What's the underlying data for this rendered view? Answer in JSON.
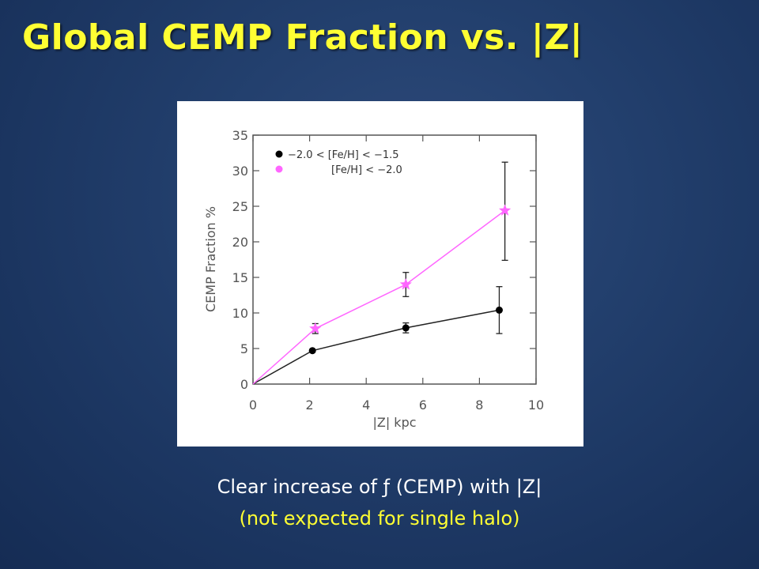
{
  "slide": {
    "title": "Global CEMP Fraction vs. |Z|",
    "caption_main": "Clear increase of ƒ (CEMP) with |Z|",
    "caption_sub": "(not expected for single halo)"
  },
  "colors": {
    "title": "#ffff33",
    "caption_main": "#ffffff",
    "caption_sub": "#ffff33",
    "series_moderate": "#000000",
    "series_metal_poor": "#ff66ff",
    "line_moderate": "#222222"
  },
  "chart_data": {
    "type": "line",
    "title": "",
    "xlabel": "|Z| kpc",
    "ylabel": "CEMP Fraction %",
    "xlim": [
      0,
      10
    ],
    "ylim": [
      0,
      35
    ],
    "x_ticks": [
      0,
      2,
      4,
      6,
      8,
      10
    ],
    "y_ticks": [
      0,
      5,
      10,
      15,
      20,
      25,
      30,
      35
    ],
    "x_tick_labels": [
      "0",
      "2",
      "4",
      "6",
      "8",
      "10"
    ],
    "y_tick_labels": [
      "0",
      "5",
      "10",
      "15",
      "20",
      "25",
      "30",
      "35"
    ],
    "grid": false,
    "legend_position": "top-left",
    "series": [
      {
        "name": "−2.0 < [Fe/H] < −1.5",
        "marker": "circle",
        "color": "#000000",
        "x": [
          0,
          2.1,
          5.4,
          8.7
        ],
        "y": [
          0,
          4.7,
          7.9,
          10.4
        ],
        "err_low": [
          0,
          0,
          0.7,
          3.3
        ],
        "err_high": [
          0,
          0,
          0.7,
          3.3
        ]
      },
      {
        "name": "[Fe/H] < −2.0",
        "marker": "star",
        "color": "#ff66ff",
        "x": [
          0,
          2.2,
          5.4,
          8.9
        ],
        "y": [
          0,
          7.8,
          14.0,
          24.4
        ],
        "err_low": [
          0,
          0.7,
          1.7,
          7.0
        ],
        "err_high": [
          0,
          0.7,
          1.7,
          6.8
        ]
      }
    ]
  }
}
